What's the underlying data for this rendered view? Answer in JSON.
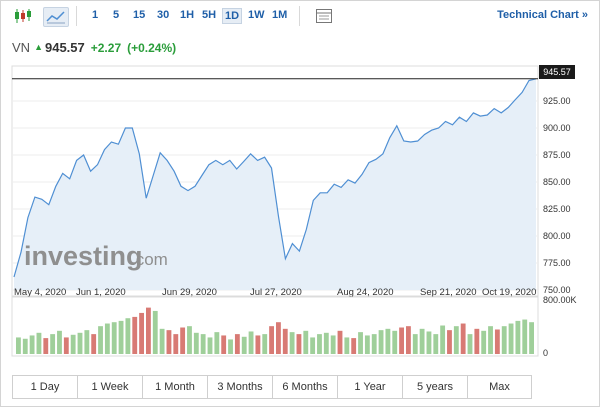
{
  "toolbar": {
    "intervals": [
      "1",
      "5",
      "15",
      "30",
      "1H",
      "5H",
      "1D",
      "1W",
      "1M"
    ],
    "active_interval": "1D",
    "technical_chart_label": "Technical Chart »"
  },
  "quote": {
    "symbol": "VN",
    "price": "945.57",
    "change": "+2.27",
    "change_pct": "(+0.24%)"
  },
  "watermark": {
    "brand": "investing",
    "suffix": ".com"
  },
  "colors": {
    "line": "#4f8fd3",
    "area": "#e6eff8",
    "up": "#9fcf9a",
    "down": "#d87a74",
    "accent": "#1f5fa8",
    "positive": "#2a9d3a"
  },
  "chart_data": [
    {
      "type": "area",
      "title": "",
      "x_labels": [
        "May 4, 2020",
        "Jun 1, 2020",
        "Jun 29, 2020",
        "Jul 27, 2020",
        "Aug 24, 2020",
        "Sep 21, 2020",
        "Oct 19, 2020"
      ],
      "y_ticks": [
        "950.00",
        "925.00",
        "900.00",
        "875.00",
        "850.00",
        "825.00",
        "800.00",
        "775.00",
        "750.00"
      ],
      "ylim": [
        750,
        950
      ],
      "last_value_label": "945.57",
      "values": [
        762,
        785,
        817,
        836,
        834,
        829,
        846,
        858,
        853,
        870,
        875,
        860,
        866,
        880,
        887,
        885,
        900,
        900,
        876,
        835,
        856,
        877,
        870,
        860,
        846,
        842,
        846,
        856,
        866,
        870,
        866,
        870,
        862,
        869,
        876,
        870,
        873,
        863,
        818,
        779,
        793,
        786,
        806,
        833,
        840,
        840,
        848,
        845,
        852,
        849,
        857,
        868,
        871,
        876,
        891,
        902,
        888,
        887,
        888,
        894,
        898,
        900,
        906,
        903,
        910,
        906,
        914,
        911,
        912,
        918,
        914,
        919,
        926,
        933,
        944,
        945.57
      ]
    },
    {
      "type": "bar",
      "title": "",
      "y_ticks": [
        "800.00K",
        "0"
      ],
      "ylim": [
        0,
        800000
      ],
      "volumes": [
        250000,
        230000,
        280000,
        320000,
        240000,
        300000,
        350000,
        250000,
        290000,
        320000,
        360000,
        300000,
        420000,
        460000,
        480000,
        500000,
        540000,
        560000,
        620000,
        700000,
        650000,
        380000,
        360000,
        300000,
        400000,
        420000,
        320000,
        300000,
        250000,
        330000,
        280000,
        220000,
        300000,
        260000,
        340000,
        280000,
        300000,
        420000,
        480000,
        380000,
        330000,
        300000,
        350000,
        250000,
        300000,
        320000,
        280000,
        350000,
        250000,
        240000,
        330000,
        280000,
        300000,
        360000,
        380000,
        350000,
        400000,
        420000,
        300000,
        380000,
        340000,
        300000,
        430000,
        360000,
        420000,
        460000,
        300000,
        380000,
        350000,
        420000,
        370000,
        420000,
        460000,
        500000,
        520000,
        480000
      ],
      "up": [
        1,
        1,
        1,
        1,
        0,
        1,
        1,
        0,
        1,
        1,
        1,
        0,
        1,
        1,
        1,
        1,
        1,
        0,
        0,
        0,
        1,
        1,
        0,
        0,
        0,
        1,
        1,
        1,
        1,
        1,
        0,
        1,
        0,
        1,
        1,
        0,
        1,
        0,
        0,
        0,
        1,
        0,
        1,
        1,
        1,
        1,
        1,
        0,
        1,
        0,
        1,
        1,
        1,
        1,
        1,
        1,
        0,
        0,
        1,
        1,
        1,
        1,
        1,
        0,
        1,
        0,
        1,
        0,
        1,
        1,
        0,
        1,
        1,
        1,
        1,
        1
      ]
    }
  ],
  "ranges": [
    "1 Day",
    "1 Week",
    "1 Month",
    "3 Months",
    "6 Months",
    "1 Year",
    "5 years",
    "Max"
  ]
}
